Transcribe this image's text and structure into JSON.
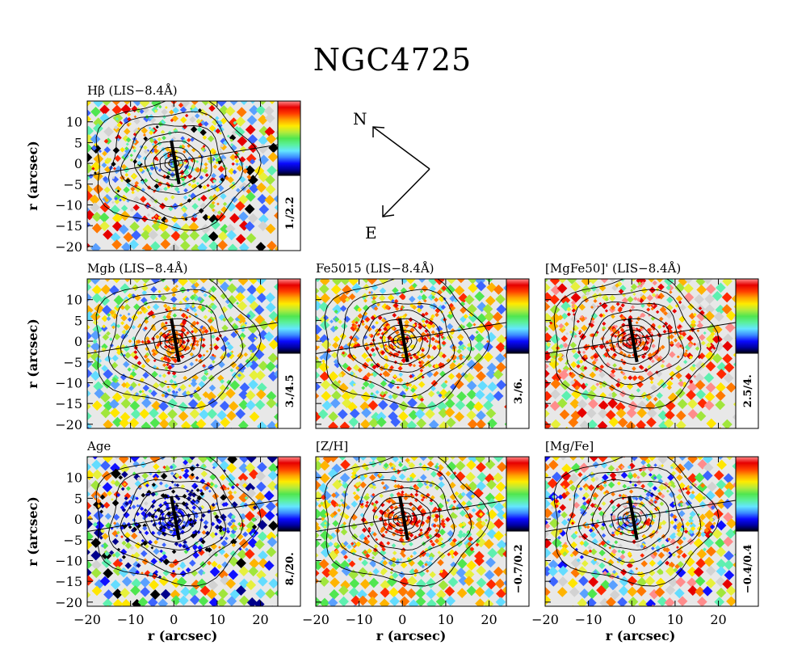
{
  "title": "NGC4725",
  "compass": {
    "north": "N",
    "east": "E"
  },
  "axes": {
    "ylabel": "r (arcsec)",
    "xlabel": "r (arcsec)",
    "xticks": [
      -20,
      -10,
      0,
      10,
      20
    ],
    "yticks": [
      10,
      5,
      0,
      -5,
      -10,
      -15,
      -20
    ],
    "xlim": [
      -20,
      24
    ],
    "ylim": [
      -21,
      15
    ]
  },
  "chart_data": {
    "type": "heatmap",
    "panels": [
      {
        "id": "hbeta",
        "label": "Hβ (LIS−8.4Å)",
        "colorbar_range": "1./2.2",
        "row": 0,
        "col": 0
      },
      {
        "id": "mgb",
        "label": "Mgb (LIS−8.4Å)",
        "colorbar_range": "3./4.5",
        "row": 1,
        "col": 0
      },
      {
        "id": "fe5015",
        "label": "Fe5015 (LIS−8.4Å)",
        "colorbar_range": "3./6.",
        "row": 1,
        "col": 1
      },
      {
        "id": "mgfe50",
        "label": "[MgFe50]' (LIS−8.4Å)",
        "colorbar_range": "2.5/4.",
        "row": 1,
        "col": 2
      },
      {
        "id": "age",
        "label": "Age",
        "colorbar_range": "8./20.",
        "row": 2,
        "col": 0
      },
      {
        "id": "zh",
        "label": "[Z/H]",
        "colorbar_range": "−0.7/0.2",
        "row": 2,
        "col": 1
      },
      {
        "id": "mgfe",
        "label": "[Mg/Fe]",
        "colorbar_range": "−0.4/0.4",
        "row": 2,
        "col": 2
      }
    ]
  }
}
